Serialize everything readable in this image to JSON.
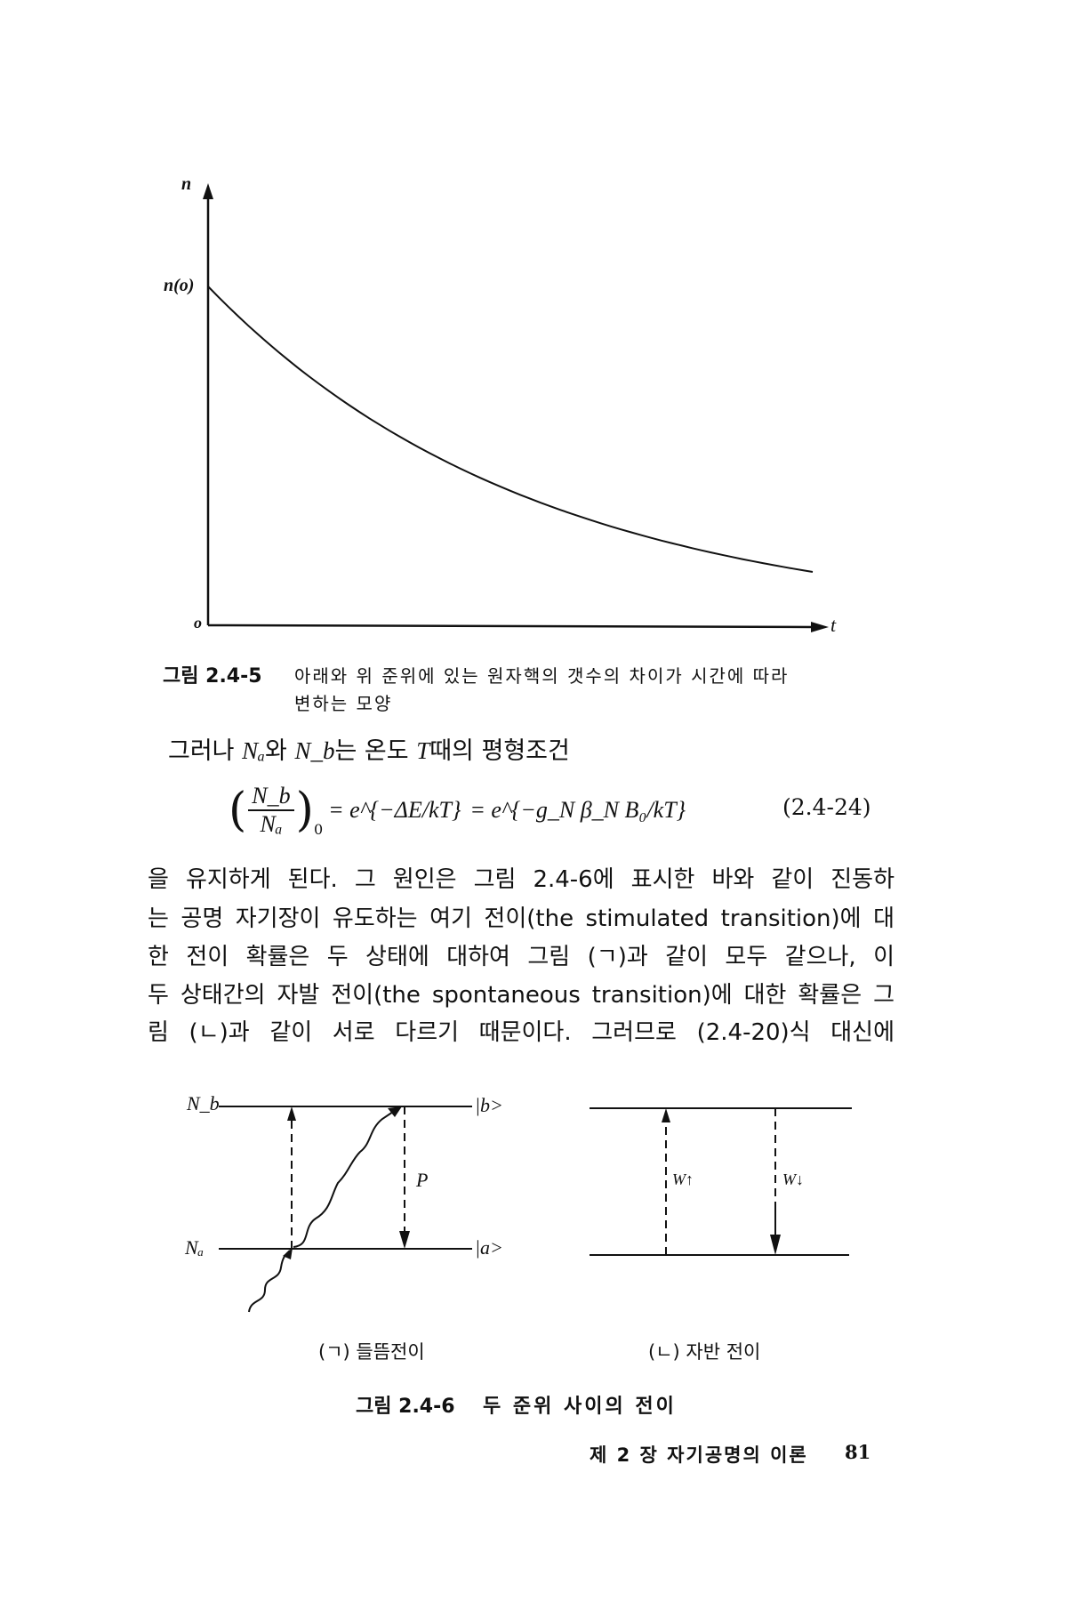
{
  "figure_1": {
    "y_axis_label": "n",
    "y_intercept_label": "n(o)",
    "origin_label": "o",
    "x_axis_label": "t",
    "caption_number": "그림 2.4-5",
    "caption_line1": "아래와 위 준위에 있는 원자핵의 갯수의 차이가 시간에 따라",
    "caption_line2": "변하는 모양"
  },
  "text_intro": {
    "before": "그러나",
    "Na": "Nₐ",
    "wa": "와",
    "Nb": "N_b",
    "after": "는 온도",
    "T": "T",
    "end": "때의 평형조건"
  },
  "equation": {
    "lhs_num": "N_b",
    "lhs_den": "Nₐ",
    "lhs_sub": "0",
    "rhs1": "= e^{−ΔE/kT}",
    "rhs2": "= e^{−g_N β_N B₀/kT}",
    "number": "(2.4-24)"
  },
  "paragraph": [
    "을 유지하게 된다. 그 원인은 그림 2.4-6에 표시한 바와 같이 진동하",
    "는 공명 자기장이 유도하는 여기 전이(the stimulated transition)에 대",
    "한 전이 확률은 두 상태에 대하여 그림 (ㄱ)과 같이 모두 같으나, 이",
    "두 상태간의 자발 전이(the spontaneous transition)에 대한 확률은 그",
    "림 (ㄴ)과 같이 서로 다르기 때문이다. 그러므로 (2.4-20)식 대신에"
  ],
  "figure_2": {
    "left": {
      "upper_level": "N_b",
      "lower_level": "Nₐ",
      "upper_state": "|b>",
      "lower_state": "|a>",
      "arrow_label": "P",
      "subcaption": "(ㄱ) 들뜸전이"
    },
    "right": {
      "up_label": "W↑",
      "down_label": "W↓",
      "subcaption": "(ㄴ) 자반 전이"
    },
    "caption_number": "그림 2.4-6",
    "caption_text": "두 준위 사이의 전이"
  },
  "footer": {
    "chapter": "제 2 장  자기공명의 이론",
    "page": "81"
  }
}
